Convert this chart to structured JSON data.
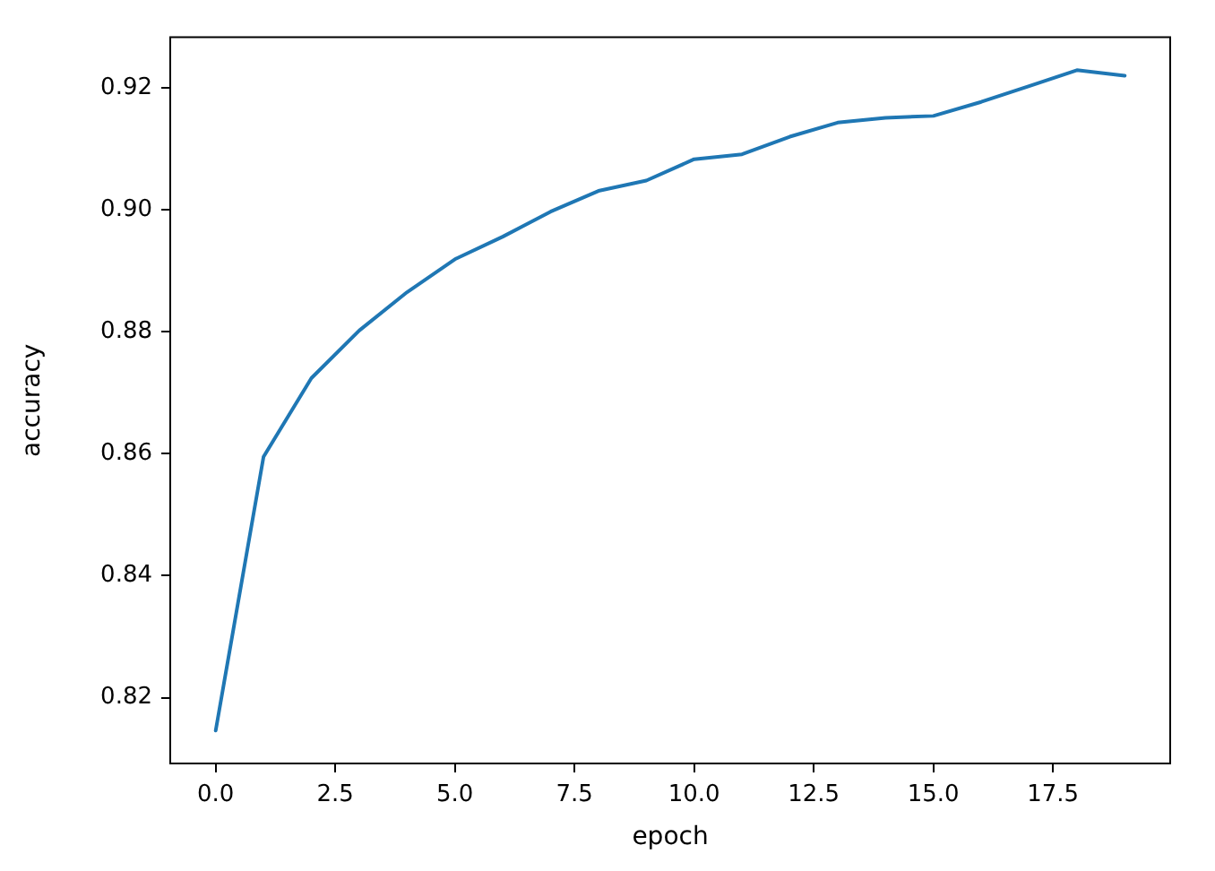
{
  "chart_data": {
    "type": "line",
    "xlabel": "epoch",
    "ylabel": "accuracy",
    "x": [
      0,
      1,
      2,
      3,
      4,
      5,
      6,
      7,
      8,
      9,
      10,
      11,
      12,
      13,
      14,
      15,
      16,
      17,
      18,
      19
    ],
    "series": [
      {
        "color": "#1f77b4",
        "values": [
          0.8146,
          0.8595,
          0.8724,
          0.8802,
          0.8865,
          0.8919,
          0.8956,
          0.8997,
          0.9031,
          0.9048,
          0.9083,
          0.9091,
          0.912,
          0.9143,
          0.9151,
          0.9154,
          0.9177,
          0.9203,
          0.9229,
          0.922
        ]
      }
    ],
    "xlim": [
      -0.95,
      19.95
    ],
    "ylim": [
      0.8092,
      0.9283
    ],
    "xticks": [
      {
        "value": 0,
        "label": "0.0"
      },
      {
        "value": 2.5,
        "label": "2.5"
      },
      {
        "value": 5,
        "label": "5.0"
      },
      {
        "value": 7.5,
        "label": "7.5"
      },
      {
        "value": 10,
        "label": "10.0"
      },
      {
        "value": 12.5,
        "label": "12.5"
      },
      {
        "value": 15,
        "label": "15.0"
      },
      {
        "value": 17.5,
        "label": "17.5"
      }
    ],
    "yticks": [
      {
        "value": 0.82,
        "label": "0.82"
      },
      {
        "value": 0.84,
        "label": "0.84"
      },
      {
        "value": 0.86,
        "label": "0.86"
      },
      {
        "value": 0.88,
        "label": "0.88"
      },
      {
        "value": 0.9,
        "label": "0.90"
      },
      {
        "value": 0.92,
        "label": "0.92"
      }
    ],
    "grid": false,
    "legend": false,
    "marker": "none",
    "line_style": "solid"
  }
}
